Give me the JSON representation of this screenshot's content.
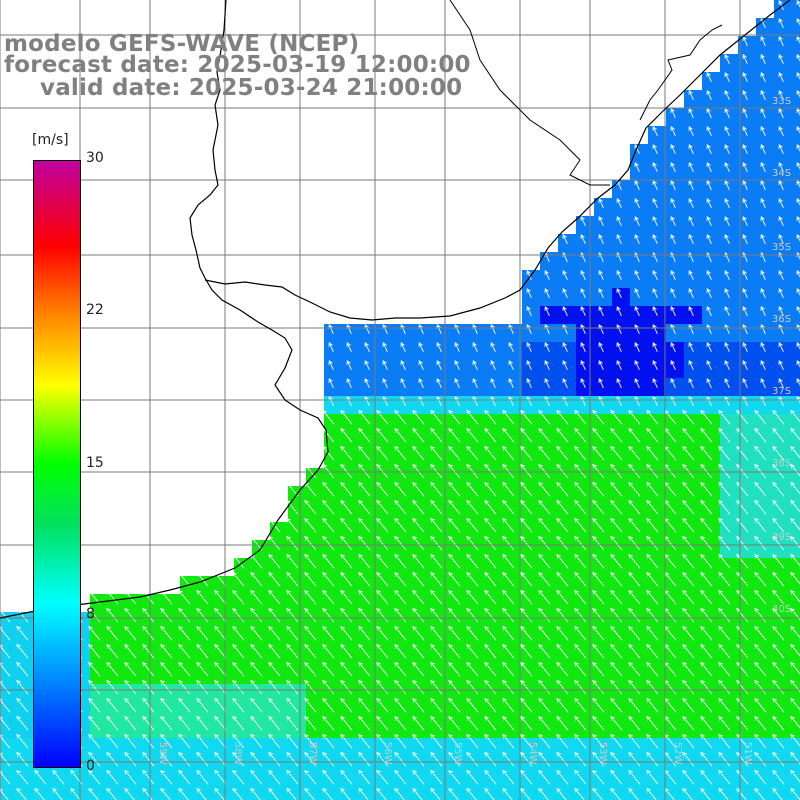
{
  "header": {
    "line1": "modelo GEFS-WAVE (NCEP)",
    "line2": "forecast date: 2025-03-19 12:00:00",
    "line3": "valid date: 2025-03-24 21:00:00"
  },
  "colorbar": {
    "unit": "[m/s]",
    "ticks": [
      "30",
      "22",
      "15",
      "8",
      "0"
    ],
    "range": [
      0,
      30
    ],
    "colors": [
      "#0000ff",
      "#00aaff",
      "#00ffff",
      "#00e060",
      "#00ff00",
      "#ffff00",
      "#ff8000",
      "#ff0000",
      "#c000a0"
    ]
  },
  "map": {
    "lat_labels": [
      "33S",
      "34S",
      "35S",
      "36S",
      "37S",
      "38S",
      "39S",
      "40S"
    ],
    "lon_labels": [
      "59W",
      "58W",
      "57W",
      "56W",
      "55W",
      "54W",
      "53W",
      "52W",
      "51W"
    ],
    "ocean_colors": {
      "deep_blue": "#0010ee",
      "blue": "#0a7cf5",
      "cyan": "#10d8f0",
      "green": "#10e810"
    },
    "land_color": "#ffffff",
    "grid_color": "#7a7a7a",
    "coast_color": "#000000",
    "arrow_color": "#ffffff"
  }
}
